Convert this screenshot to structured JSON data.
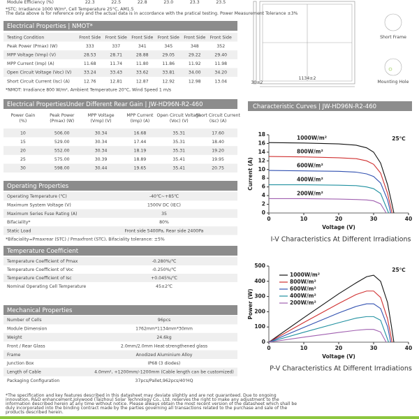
{
  "top_row": {
    "label": "Module Efficiency (%)",
    "values": [
      "22.3",
      "22.5",
      "22.8",
      "23.0",
      "23.3",
      "23.5"
    ]
  },
  "stc_note": [
    "*STC: Irradiance 1000 W/m², Cell Temperature 25°C, AM1.5",
    "The data above is for reference only and the actual data is in accordance with the pratical testing. Power Measurement Tolerance ±3%"
  ],
  "sections": [
    {
      "title": "Electrical Properties | NMOT*",
      "rows": [
        [
          "Testing Condition",
          "Front Side",
          "Front Side",
          "Front Side",
          "Front Side",
          "Front Side",
          "Front Side"
        ],
        [
          "Peak Power (Pmax) (W)",
          "333",
          "337",
          "341",
          "345",
          "348",
          "352"
        ],
        [
          "MPP Voltage (Vmp) (V)",
          "28.53",
          "28.71",
          "28.88",
          "29.05",
          "29.22",
          "29.40"
        ],
        [
          "MPP Current (Imp) (A)",
          "11.68",
          "11.74",
          "11.80",
          "11.86",
          "11.92",
          "11.98"
        ],
        [
          "Open Circuit Voltage (Voc) (V)",
          "33.24",
          "33.43",
          "33.62",
          "33.81",
          "34.00",
          "34.20"
        ],
        [
          "Short Circuit Current (Isc) (A)",
          "12.76",
          "12.81",
          "12.87",
          "12.92",
          "12.98",
          "13.04"
        ]
      ],
      "note": "*NMOT: Irradiance 800 W/m², Ambient Temperature 20°C, Wind Speed 1 m/s"
    },
    {
      "title": "Electrical PropertiesUnder Different Rear Gain | JW-HD96N-R2-460",
      "columns": [
        [
          "Power Gain",
          "(%)"
        ],
        [
          "Peak Power",
          "(Pmax) (W)"
        ],
        [
          "MPP Voltage",
          "(Vmp) (V)"
        ],
        [
          "MPP Current",
          "(Imp) (A)"
        ],
        [
          "Open Circuit Voltage",
          "(Voc) (V)"
        ],
        [
          "Short Circuit Current",
          "(Isc) (A)"
        ]
      ],
      "rows": [
        [
          "10",
          "506.00",
          "30.34",
          "16.68",
          "35.31",
          "17.60"
        ],
        [
          "15",
          "529.00",
          "30.34",
          "17.44",
          "35.31",
          "18.40"
        ],
        [
          "20",
          "552.00",
          "30.34",
          "18.19",
          "35.31",
          "19.20"
        ],
        [
          "25",
          "575.00",
          "30.39",
          "18.89",
          "35.41",
          "19.95"
        ],
        [
          "30",
          "598.00",
          "30.44",
          "19.65",
          "35.41",
          "20.75"
        ]
      ]
    },
    {
      "title": "Operating Properties",
      "rows": [
        [
          "Operating Temperature (℃)",
          "-40℃~+85℃"
        ],
        [
          "Maximum System Voltage (V)",
          "1500V DC (IEC)"
        ],
        [
          "Maximum Series Fuse Rating (A)",
          "35"
        ],
        [
          "Bifaciality*",
          "80%"
        ],
        [
          "Static Load",
          "Front side 5400Pa, Rear side 2400Pa"
        ]
      ],
      "note": "*Bifaciality=Pmaxrear (STC) / Pmaxfront (STC), Bifaciality tolerance: ±5%"
    },
    {
      "title": "Temperature Coefficient",
      "rows": [
        [
          "Temperature Coefficient of Pmax",
          "-0.280%/℃"
        ],
        [
          "Temperature Coefficient of Voc",
          "-0.250%/℃"
        ],
        [
          "Temperature Coefficient of Isc",
          "+0.045%/℃"
        ],
        [
          "Nominal Operating Cell Temperature",
          "45±2℃"
        ]
      ]
    },
    {
      "title": "Mechanical Properties",
      "rows": [
        [
          "Number of Cells",
          "96pcs"
        ],
        [
          "Module Dimension",
          "1762mm*1134mm*30mm"
        ],
        [
          "Weight",
          "24.6kg"
        ],
        [
          "Front / Rear Glass",
          "2.0mm/2.0mm Heat-strengthened glass"
        ],
        [
          "Frame",
          "Anodized Aluminium Alloy"
        ],
        [
          "Junction Box",
          "IP68 (3 diodes)"
        ],
        [
          "Length of Cable",
          "4.0mm², +1200mm/-1200mm (Cable length can be customized)"
        ],
        [
          "Packaging Configuration",
          "37pcs/Pallet,962pcs/40'HQ"
        ]
      ]
    }
  ],
  "footer": [
    "*The specification and key features described in this datasheet may deviate slightly and are not guaranteed. Due to ongoing",
    "innovation, R&D enhancement,Jolywood (Taizhou) Solar Technology Co., Ltd. reserves the right to make any adjustment to the",
    "information described herein at any time without notice. Please always obtain the most recent version of the datasheet which shall be",
    "duly incorporated into the binding contract made by the parties governing all transactions related to the purchase and sale of the",
    "products described herein."
  ],
  "drawing": {
    "short_frame": "Short Frame",
    "mounting_hole": "Mounting Hole",
    "width_dim": "1134±2",
    "side_dim": "30±2"
  },
  "curves_header": "Characteristic Curves | JW-HD96N-R2-460",
  "charts": [
    {
      "type": "line",
      "title": "I-V Characteristics At Different Irradiations",
      "xlabel": "Voltage (V)",
      "ylabel": "Current (A)",
      "annotation": "25℃",
      "xlim": [
        0,
        40
      ],
      "xticks": [
        0,
        10,
        20,
        30,
        40
      ],
      "ylim": [
        0,
        18
      ],
      "yticks": [
        0,
        2,
        4,
        6,
        8,
        10,
        12,
        14,
        16,
        18
      ],
      "series": [
        {
          "name": "1000W/m²",
          "color": "#111111",
          "x": [
            0,
            10,
            20,
            25,
            28,
            30,
            32,
            34,
            35,
            35.8
          ],
          "values": [
            16.2,
            16.1,
            15.9,
            15.6,
            15.0,
            14.0,
            11.5,
            6.5,
            3,
            0
          ]
        },
        {
          "name": "800W/m²",
          "color": "#d03030",
          "x": [
            0,
            10,
            20,
            25,
            28,
            30,
            32,
            34,
            35.3
          ],
          "values": [
            13.0,
            12.9,
            12.7,
            12.5,
            12.0,
            11.2,
            9.2,
            4.5,
            0
          ]
        },
        {
          "name": "600W/m²",
          "color": "#3050b0",
          "x": [
            0,
            10,
            20,
            25,
            28,
            30,
            32,
            34,
            34.9
          ],
          "values": [
            9.8,
            9.7,
            9.6,
            9.4,
            9.0,
            8.4,
            6.9,
            3.0,
            0
          ]
        },
        {
          "name": "400W/m²",
          "color": "#2090a0",
          "x": [
            0,
            10,
            20,
            25,
            28,
            30,
            32,
            34.3
          ],
          "values": [
            6.5,
            6.5,
            6.4,
            6.3,
            6.0,
            5.6,
            4.5,
            0
          ]
        },
        {
          "name": "200W/m²",
          "color": "#a060b0",
          "x": [
            0,
            10,
            20,
            25,
            28,
            30,
            32,
            33.6
          ],
          "values": [
            3.3,
            3.3,
            3.2,
            3.1,
            3.0,
            2.8,
            2.1,
            0
          ]
        }
      ]
    },
    {
      "type": "line",
      "title": "P-V Characteristics At Different Irradiations",
      "xlabel": "Voltage (V)",
      "ylabel": "Power (W)",
      "annotation": "25℃",
      "xlim": [
        0,
        40
      ],
      "xticks": [
        0,
        10,
        20,
        30,
        40
      ],
      "ylim": [
        0,
        500
      ],
      "yticks": [
        0,
        100,
        200,
        300,
        400,
        500
      ],
      "series": [
        {
          "name": "1000W/m²",
          "color": "#111111",
          "x": [
            0,
            10,
            20,
            25,
            28,
            30,
            32,
            34,
            35,
            35.8
          ],
          "values": [
            0,
            161,
            318,
            390,
            430,
            440,
            400,
            260,
            120,
            0
          ]
        },
        {
          "name": "800W/m²",
          "color": "#d03030",
          "x": [
            0,
            10,
            20,
            25,
            28,
            30,
            32,
            34,
            35.3
          ],
          "values": [
            0,
            129,
            254,
            313,
            336,
            336,
            294,
            153,
            0
          ]
        },
        {
          "name": "600W/m²",
          "color": "#3050b0",
          "x": [
            0,
            10,
            20,
            25,
            28,
            30,
            32,
            34,
            34.9
          ],
          "values": [
            0,
            97,
            192,
            235,
            252,
            252,
            221,
            102,
            0
          ]
        },
        {
          "name": "400W/m²",
          "color": "#2090a0",
          "x": [
            0,
            10,
            20,
            25,
            28,
            30,
            32,
            34.3
          ],
          "values": [
            0,
            65,
            128,
            158,
            168,
            168,
            144,
            0
          ]
        },
        {
          "name": "200W/m²",
          "color": "#a060b0",
          "x": [
            0,
            10,
            20,
            25,
            28,
            30,
            32,
            33.6
          ],
          "values": [
            0,
            33,
            64,
            78,
            84,
            84,
            67,
            0
          ]
        }
      ]
    }
  ]
}
